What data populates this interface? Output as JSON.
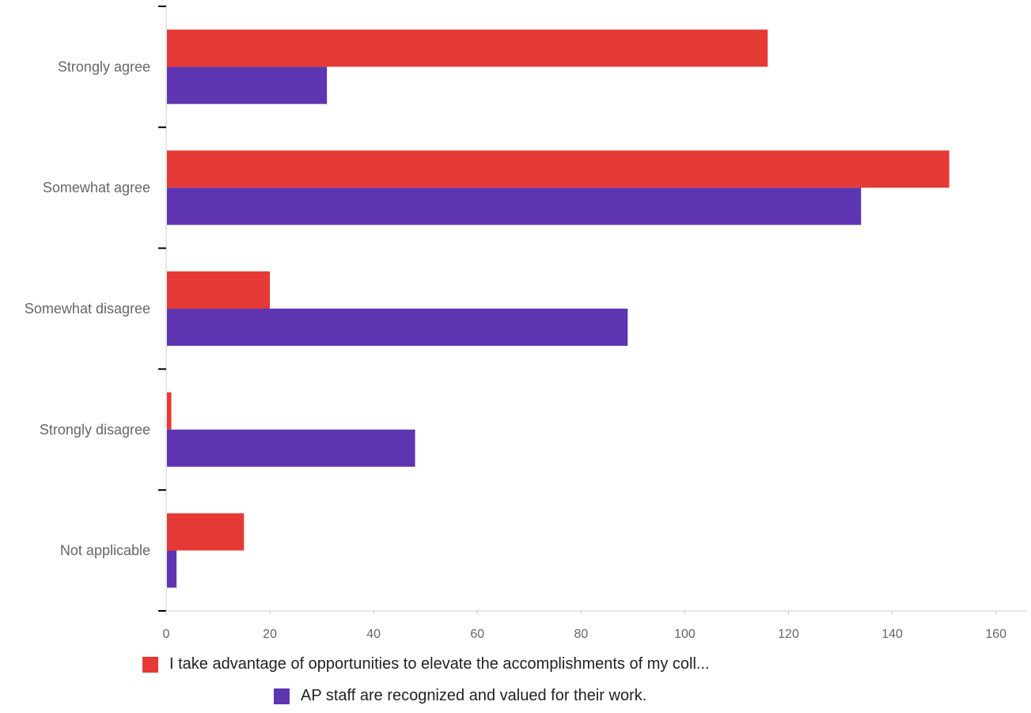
{
  "chart_data": {
    "type": "bar",
    "orientation": "horizontal",
    "categories": [
      "Strongly agree",
      "Somewhat agree",
      "Somewhat disagree",
      "Strongly disagree",
      "Not applicable"
    ],
    "series": [
      {
        "name": "I take advantage of opportunities to elevate the accomplishments of my coll...",
        "color": "#e53935",
        "values": [
          116,
          151,
          20,
          1,
          15
        ]
      },
      {
        "name": "AP staff are recognized and valued for their work.",
        "color": "#5e35b1",
        "values": [
          31,
          134,
          89,
          48,
          2
        ]
      }
    ],
    "x_ticks": [
      "0",
      "20",
      "40",
      "60",
      "80",
      "100",
      "120",
      "140",
      "160"
    ],
    "xlim": [
      0,
      166
    ],
    "title": "",
    "xlabel": "",
    "ylabel": "",
    "grid": false,
    "legend_position": "bottom"
  }
}
